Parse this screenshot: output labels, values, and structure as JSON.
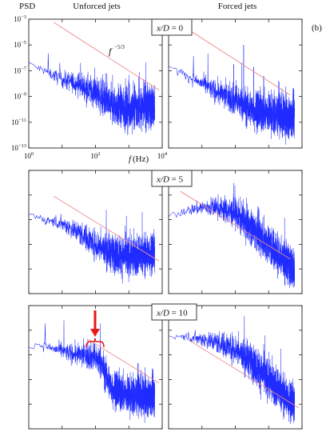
{
  "figure": {
    "panel_tag": "(b)",
    "ylabel": "PSD",
    "xlabel_f": "f",
    "xlabel_unit": " (Hz)",
    "col_titles": [
      "Unforced jets",
      "Forced jets"
    ],
    "slope_base": "f",
    "slope_exp": "−5/3"
  },
  "rows": [
    {
      "label_var": "x/D",
      "label_val": " = 0"
    },
    {
      "label_var": "x/D",
      "label_val": " = 5"
    },
    {
      "label_var": "x/D",
      "label_val": " = 10"
    }
  ],
  "axes": {
    "y_ticks": [
      {
        "exp": -3,
        "label_base": "10",
        "label_exp": "−3"
      },
      {
        "exp": -5,
        "label_base": "10",
        "label_exp": "−5"
      },
      {
        "exp": -7,
        "label_base": "10",
        "label_exp": "−7"
      },
      {
        "exp": -9,
        "label_base": "10",
        "label_exp": "−9"
      },
      {
        "exp": -11,
        "label_base": "10",
        "label_exp": "−11"
      },
      {
        "exp": -13,
        "label_base": "10",
        "label_exp": "−13"
      }
    ],
    "x_ticks": [
      {
        "exp": 0,
        "label_base": "10",
        "label_exp": "0"
      },
      {
        "exp": 2,
        "label_base": "10",
        "label_exp": "2"
      },
      {
        "exp": 4,
        "label_base": "10",
        "label_exp": "4"
      }
    ]
  },
  "colors": {
    "spectrum": "#1f2bff",
    "reference": "#f08a8a",
    "annotation": "#e8191a"
  },
  "chart_data": [
    {
      "type": "line",
      "row": "x/D = 0",
      "column": "Unforced jets",
      "xscale": "log",
      "yscale": "log",
      "xlim": [
        1,
        10000
      ],
      "ylim": [
        1e-13,
        0.001
      ],
      "series": [
        {
          "x": [
            1,
            3,
            10,
            30,
            100,
            300,
            1000,
            3000,
            6000
          ],
          "values": [
            3e-07,
            1e-07,
            2e-08,
            1e-08,
            2e-09,
            2e-10,
            1e-10,
            1.5e-10,
            2e-10
          ]
        }
      ]
    },
    {
      "type": "line",
      "row": "x/D = 0",
      "column": "Forced jets",
      "xscale": "log",
      "yscale": "log",
      "xlim": [
        1,
        10000
      ],
      "ylim": [
        1e-13,
        0.001
      ],
      "series": [
        {
          "x": [
            1,
            3,
            10,
            30,
            100,
            300,
            1000,
            3000,
            6000
          ],
          "values": [
            2e-07,
            5e-08,
            1e-08,
            2e-09,
            5e-10,
            1e-10,
            5e-11,
            3e-11,
            3e-11
          ]
        }
      ]
    },
    {
      "type": "line",
      "row": "x/D = 5",
      "column": "Unforced jets",
      "xscale": "log",
      "yscale": "log",
      "xlim": [
        1,
        10000
      ],
      "ylim": [
        1e-13,
        0.001
      ],
      "series": [
        {
          "x": [
            1,
            3,
            10,
            30,
            100,
            300,
            1000,
            3000,
            6000
          ],
          "values": [
            3e-07,
            1e-07,
            5e-08,
            1e-08,
            1e-09,
            2e-10,
            1e-10,
            1.5e-10,
            2e-10
          ]
        }
      ]
    },
    {
      "type": "line",
      "row": "x/D = 5",
      "column": "Forced jets",
      "xscale": "log",
      "yscale": "log",
      "xlim": [
        1,
        10000
      ],
      "ylim": [
        1e-13,
        0.001
      ],
      "series": [
        {
          "x": [
            1,
            3,
            10,
            30,
            100,
            300,
            1000,
            3000,
            6000
          ],
          "values": [
            2e-07,
            5e-07,
            1e-06,
            1e-06,
            3e-07,
            3e-08,
            1e-09,
            5e-11,
            1e-11
          ]
        }
      ]
    },
    {
      "type": "line",
      "row": "x/D = 10",
      "column": "Unforced jets",
      "xscale": "log",
      "yscale": "log",
      "xlim": [
        1,
        10000
      ],
      "ylim": [
        1e-13,
        0.001
      ],
      "series": [
        {
          "x": [
            1,
            3,
            10,
            30,
            80,
            150,
            300,
            1000,
            3000,
            6000
          ],
          "values": [
            1e-06,
            5e-07,
            2e-07,
            1e-07,
            8e-08,
            2e-08,
            2e-10,
            5e-11,
            5e-11,
            5e-11
          ]
        }
      ]
    },
    {
      "type": "line",
      "row": "x/D = 10",
      "column": "Forced jets",
      "xscale": "log",
      "yscale": "log",
      "xlim": [
        1,
        10000
      ],
      "ylim": [
        1e-13,
        0.001
      ],
      "series": [
        {
          "x": [
            1,
            3,
            10,
            30,
            100,
            300,
            1000,
            3000,
            6000
          ],
          "values": [
            3e-06,
            3e-06,
            2e-06,
            1e-06,
            3e-07,
            3e-08,
            1e-09,
            5e-11,
            1e-11
          ]
        }
      ]
    }
  ]
}
